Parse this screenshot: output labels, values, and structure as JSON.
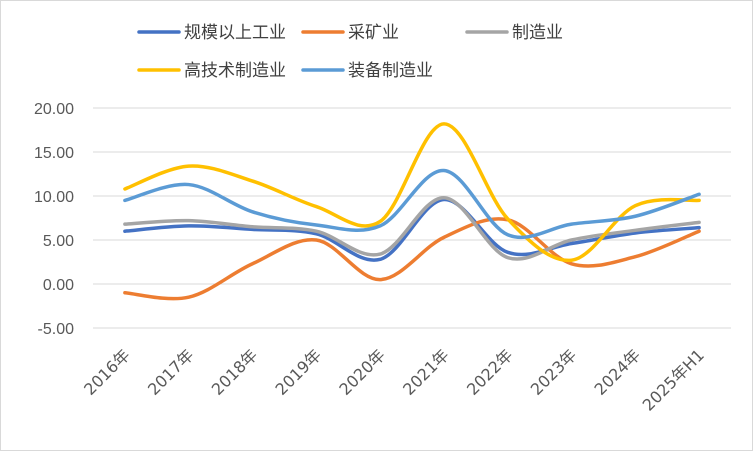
{
  "chart_data": {
    "type": "line",
    "title": "",
    "xlabel": "",
    "ylabel": "",
    "ylim": [
      -5,
      20
    ],
    "yticks": [
      "-5.00",
      "0.00",
      "5.00",
      "10.00",
      "15.00",
      "20.00"
    ],
    "ytick_values": [
      -5,
      0,
      5,
      10,
      15,
      20
    ],
    "grid": "horizontal",
    "legend_position": "top",
    "smooth": true,
    "categories": [
      "2016年",
      "2017年",
      "2018年",
      "2019年",
      "2020年",
      "2021年",
      "2022年",
      "2023年",
      "2024年",
      "2025年H1"
    ],
    "series": [
      {
        "name": "规模以上工业",
        "color": "#4472C4",
        "values": [
          6.0,
          6.6,
          6.2,
          5.7,
          2.8,
          9.6,
          3.6,
          4.6,
          5.8,
          6.4
        ]
      },
      {
        "name": "采矿业",
        "color": "#ED7D31",
        "values": [
          -1.0,
          -1.5,
          2.3,
          5.0,
          0.5,
          5.3,
          7.3,
          2.3,
          3.1,
          6.0
        ]
      },
      {
        "name": "制造业",
        "color": "#A5A5A5",
        "values": [
          6.8,
          7.2,
          6.5,
          6.0,
          3.4,
          9.8,
          3.0,
          5.0,
          6.1,
          7.0
        ]
      },
      {
        "name": "高技术制造业",
        "color": "#FFC000",
        "values": [
          10.8,
          13.4,
          11.7,
          8.8,
          7.1,
          18.2,
          7.4,
          2.7,
          8.9,
          9.5
        ]
      },
      {
        "name": "装备制造业",
        "color": "#5B9BD5",
        "values": [
          9.5,
          11.3,
          8.2,
          6.7,
          6.6,
          12.9,
          5.6,
          6.8,
          7.7,
          10.2
        ]
      }
    ]
  }
}
